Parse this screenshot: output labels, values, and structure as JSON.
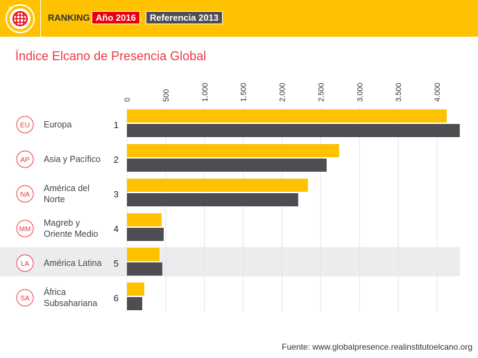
{
  "header": {
    "ranking": "RANKING",
    "year_badge": "Año 2016",
    "ref_badge": "Referencia 2013",
    "logo_icon": "globe-icon"
  },
  "colors": {
    "s2016": "#fec200",
    "s2013": "#4e4d52",
    "accent": "#ee3a43"
  },
  "source": "Fuente: www.globalpresence.realinstitutoelcano.org",
  "chart_data": {
    "type": "bar",
    "orientation": "horizontal",
    "title": "Índice Elcano de Presencia Global",
    "xlim": [
      0,
      4300
    ],
    "xticks": [
      "0",
      "500",
      "1.000",
      "1.500",
      "2.000",
      "2.500",
      "3.000",
      "3.500",
      "4.000"
    ],
    "tick_values": [
      0,
      500,
      1000,
      1500,
      2000,
      2500,
      3000,
      3500,
      4000
    ],
    "categories": [
      {
        "abbr": "EU",
        "name": [
          "Europa"
        ],
        "rank": "1"
      },
      {
        "abbr": "AP",
        "name": [
          "Asia y Pacífico"
        ],
        "rank": "2"
      },
      {
        "abbr": "NA",
        "name": [
          "América del",
          "Norte"
        ],
        "rank": "3"
      },
      {
        "abbr": "MM",
        "name": [
          "Magreb y",
          "Oriente Medio"
        ],
        "rank": "4"
      },
      {
        "abbr": "LA",
        "name": [
          "América Latina"
        ],
        "rank": "5"
      },
      {
        "abbr": "SA",
        "name": [
          "África",
          "Subsahariana"
        ],
        "rank": "6"
      }
    ],
    "highlighted": "LA",
    "series": [
      {
        "name": "Año 2016",
        "values": [
          4124,
          2737,
          2335,
          447,
          420,
          224
        ]
      },
      {
        "name": "Referencia 2013",
        "values": [
          4293,
          2576,
          2209,
          474,
          456,
          197
        ]
      }
    ]
  }
}
